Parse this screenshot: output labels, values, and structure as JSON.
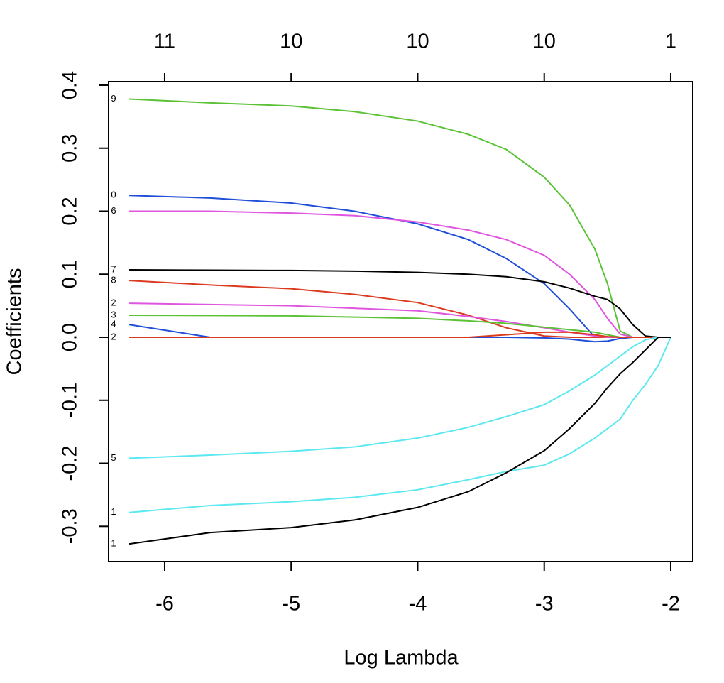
{
  "chart_data": {
    "type": "line",
    "xlabel": "Log Lambda",
    "ylabel": "Coefficients",
    "xlim": [
      -6.443,
      -1.826
    ],
    "ylim": [
      -0.356,
      0.4056
    ],
    "xticks": [
      -6,
      -5,
      -4,
      -3,
      -2
    ],
    "top_ticks": [
      {
        "value": -6,
        "label": "11"
      },
      {
        "value": -5,
        "label": "10"
      },
      {
        "value": -4,
        "label": "10"
      },
      {
        "value": -3,
        "label": "10"
      },
      {
        "value": -2,
        "label": "1"
      }
    ],
    "yticks": [
      -0.3,
      -0.2,
      -0.1,
      {
        "value": 0,
        "label": "0.0"
      },
      0.1,
      0.2,
      0.3,
      0.4
    ],
    "x": [
      -6.28,
      -5.64,
      -5,
      -4.5,
      -4,
      -3.6,
      -3.3,
      -3,
      -2.8,
      -2.6,
      -2.5,
      -2.4,
      -2.3,
      -2.2,
      -2.1,
      -2.0
    ],
    "series": [
      {
        "name": "9",
        "color": "#5bc236",
        "values": [
          0.378,
          0.372,
          0.367,
          0.358,
          0.343,
          0.322,
          0.298,
          0.254,
          0.21,
          0.14,
          0.085,
          0.01,
          0,
          0,
          0,
          0
        ]
      },
      {
        "name": "0",
        "color": "#1f4fd8",
        "values": [
          0.225,
          0.221,
          0.213,
          0.2,
          0.18,
          0.155,
          0.125,
          0.085,
          0.045,
          0,
          0,
          0,
          0,
          0,
          0,
          0
        ]
      },
      {
        "name": "6",
        "color": "#e055e0",
        "values": [
          0.2,
          0.2,
          0.197,
          0.193,
          0.183,
          0.17,
          0.155,
          0.13,
          0.1,
          0.06,
          0.03,
          0.005,
          0,
          0,
          0,
          0
        ]
      },
      {
        "name": "7",
        "color": "#000000",
        "values": [
          0.107,
          0.1065,
          0.106,
          0.105,
          0.103,
          0.1,
          0.096,
          0.088,
          0.078,
          0.065,
          0.06,
          0.045,
          0.02,
          0.002,
          0,
          0
        ]
      },
      {
        "name": "8",
        "color": "#dc3a1e",
        "values": [
          0.09,
          0.083,
          0.077,
          0.068,
          0.055,
          0.035,
          0.015,
          0.002,
          0,
          0,
          0,
          0,
          0,
          0,
          0,
          0
        ]
      },
      {
        "name": "2",
        "color": "#e055e0",
        "values": [
          0.054,
          0.052,
          0.05,
          0.046,
          0.042,
          0.033,
          0.025,
          0.015,
          0.008,
          0.002,
          0,
          0,
          0,
          0,
          0,
          0
        ]
      },
      {
        "name": "3",
        "color": "#5bc236",
        "values": [
          0.035,
          0.0345,
          0.034,
          0.032,
          0.03,
          0.026,
          0.022,
          0.016,
          0.012,
          0.008,
          0.004,
          0,
          0,
          0,
          0,
          0
        ]
      },
      {
        "name": "4",
        "color": "#1f4fd8",
        "values": [
          0.02,
          0,
          0,
          0,
          0,
          0,
          0,
          -0.001,
          -0.003,
          -0.007,
          -0.006,
          -0.002,
          0,
          0,
          0,
          0
        ]
      },
      {
        "name": "2",
        "color": "#dc3a1e",
        "values": [
          0,
          0,
          0,
          0,
          0,
          0,
          0.004,
          0.008,
          0.008,
          0.004,
          0.001,
          0,
          0,
          0,
          0,
          0
        ]
      },
      {
        "name": "5",
        "color": "#5ce8f0",
        "values": [
          -0.192,
          -0.187,
          -0.181,
          -0.174,
          -0.16,
          -0.143,
          -0.126,
          -0.107,
          -0.085,
          -0.06,
          -0.045,
          -0.03,
          -0.015,
          -0.004,
          0,
          0
        ]
      },
      {
        "name": "1",
        "color": "#5ce8f0",
        "values": [
          -0.278,
          -0.267,
          -0.261,
          -0.254,
          -0.242,
          -0.226,
          -0.213,
          -0.203,
          -0.185,
          -0.16,
          -0.145,
          -0.13,
          -0.1,
          -0.075,
          -0.045,
          0
        ]
      },
      {
        "name": "1",
        "color": "#000000",
        "values": [
          -0.328,
          -0.31,
          -0.302,
          -0.29,
          -0.27,
          -0.245,
          -0.215,
          -0.18,
          -0.145,
          -0.105,
          -0.08,
          -0.058,
          -0.04,
          -0.02,
          0,
          0
        ]
      }
    ]
  }
}
